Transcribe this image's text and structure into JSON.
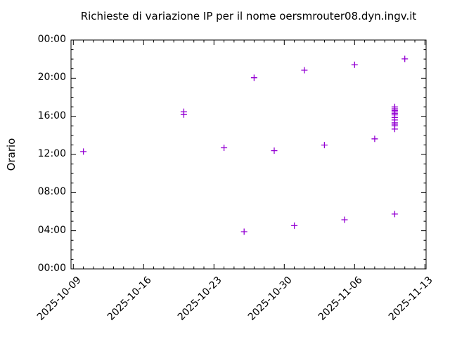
{
  "chart_data": {
    "type": "scatter",
    "title": "Richieste di variazione IP per il nome oersmrouter08.dyn.ingv.it",
    "xlabel": "",
    "ylabel": "Orario",
    "grid": false,
    "legend": "none",
    "x_axis": {
      "start_date": "2025-10-09",
      "end_date": "2025-11-13",
      "tick_interval_days": 7,
      "minor_tick_days": 1,
      "tick_labels": [
        "2025-10-09",
        "2025-10-16",
        "2025-10-23",
        "2025-10-30",
        "2025-11-06",
        "2025-11-13"
      ]
    },
    "y_axis": {
      "unit": "time-of-day",
      "min_hour": 0,
      "max_hour": 24,
      "tick_interval_hours": 4,
      "minor_tick_hours": 1,
      "tick_labels_bottom_to_top": [
        "00:00",
        "04:00",
        "08:00",
        "12:00",
        "16:00",
        "20:00",
        "00:00"
      ]
    },
    "marker": {
      "shape": "plus",
      "color": "#9400d3"
    },
    "points": [
      {
        "date": "2025-10-10",
        "time": "12:18"
      },
      {
        "date": "2025-10-20",
        "time": "16:29"
      },
      {
        "date": "2025-10-20",
        "time": "16:11"
      },
      {
        "date": "2025-10-24",
        "time": "12:42"
      },
      {
        "date": "2025-10-26",
        "time": "03:54"
      },
      {
        "date": "2025-10-27",
        "time": "20:03"
      },
      {
        "date": "2025-10-29",
        "time": "12:24"
      },
      {
        "date": "2025-10-31",
        "time": "04:32"
      },
      {
        "date": "2025-11-01",
        "time": "20:50"
      },
      {
        "date": "2025-11-03",
        "time": "12:59"
      },
      {
        "date": "2025-11-05",
        "time": "05:09"
      },
      {
        "date": "2025-11-06",
        "time": "21:24"
      },
      {
        "date": "2025-11-08",
        "time": "13:38"
      },
      {
        "date": "2025-11-10",
        "time": "05:45"
      },
      {
        "date": "2025-11-10",
        "time": "14:40"
      },
      {
        "date": "2025-11-10",
        "time": "15:01"
      },
      {
        "date": "2025-11-10",
        "time": "15:10"
      },
      {
        "date": "2025-11-10",
        "time": "15:19"
      },
      {
        "date": "2025-11-10",
        "time": "15:37"
      },
      {
        "date": "2025-11-10",
        "time": "15:53"
      },
      {
        "date": "2025-11-10",
        "time": "16:09"
      },
      {
        "date": "2025-11-10",
        "time": "16:19"
      },
      {
        "date": "2025-11-10",
        "time": "16:28"
      },
      {
        "date": "2025-11-10",
        "time": "16:37"
      },
      {
        "date": "2025-11-10",
        "time": "16:47"
      },
      {
        "date": "2025-11-10",
        "time": "16:59"
      },
      {
        "date": "2025-11-11",
        "time": "22:01"
      }
    ]
  }
}
